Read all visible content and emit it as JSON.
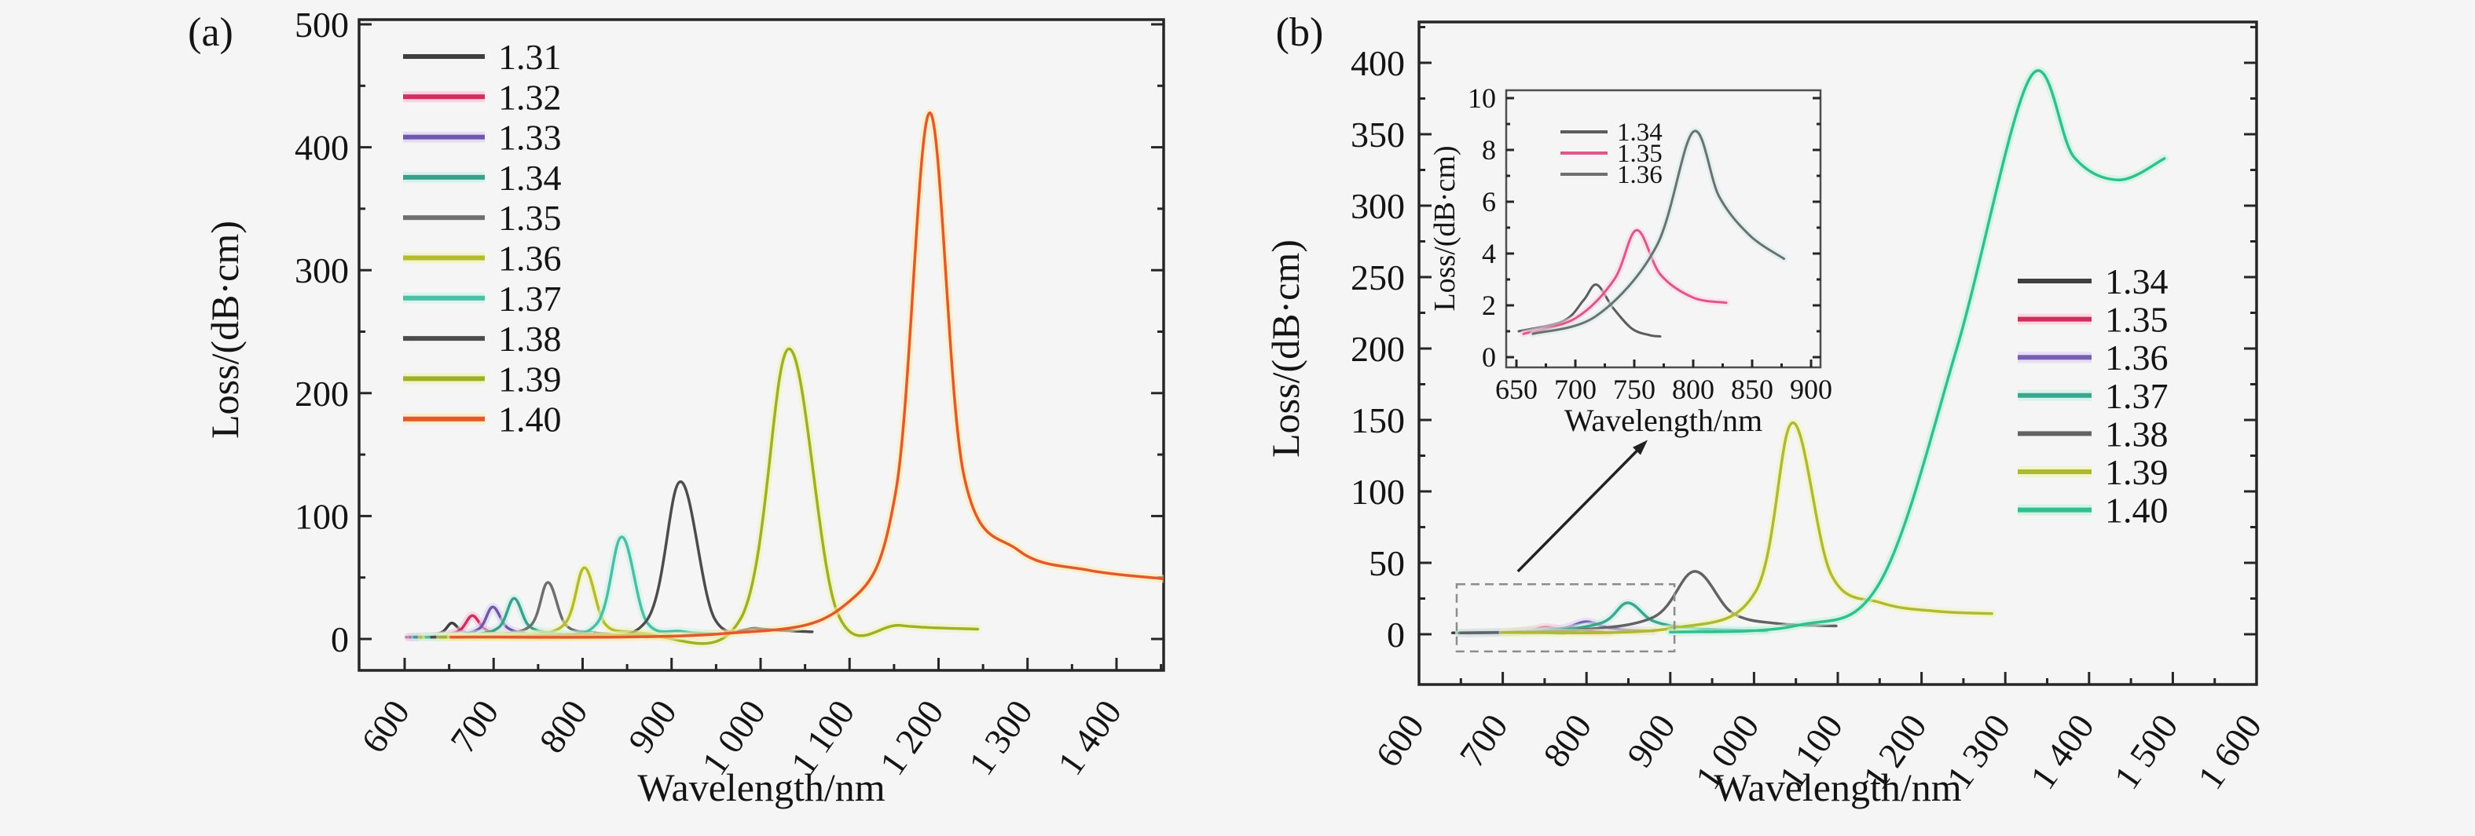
{
  "figure": {
    "background": "#f5f5f5",
    "text_color": "#141414",
    "frame_color": "#262626"
  },
  "chart_data": [
    {
      "id": "a",
      "type": "line",
      "panel_tag": "(a)",
      "xlabel": "Wavelength/nm",
      "ylabel": "Loss/(dB·cm)",
      "xlim": [
        549,
        1453
      ],
      "ylim": [
        -26,
        530
      ],
      "grid": false,
      "legend_position": "upper-left-inside",
      "x_ticks": {
        "values": [
          600,
          700,
          800,
          900,
          1000,
          1100,
          1200,
          1300,
          1400
        ],
        "labels": [
          "600",
          "700",
          "800",
          "900",
          "1 000",
          "1 100",
          "1 200",
          "1 300",
          "1 400"
        ]
      },
      "x_minor_ticks": [
        650,
        750,
        850,
        950,
        1050,
        1150,
        1250,
        1350,
        1450
      ],
      "y_ticks": {
        "values": [
          0,
          100,
          200,
          300,
          400,
          500
        ],
        "labels": [
          "0",
          "100",
          "200",
          "300",
          "400",
          "500"
        ]
      },
      "y_minor_ticks": [
        50,
        150,
        250,
        350,
        450
      ],
      "series": [
        {
          "label": "1.31",
          "color": "#3f3f3f",
          "halo": "",
          "peak": [
            653,
            13
          ],
          "points": [
            [
              602,
              1.5
            ],
            [
              628,
              2.5
            ],
            [
              643,
              6
            ],
            [
              653,
              13
            ],
            [
              664,
              6.5
            ],
            [
              678,
              3
            ],
            [
              700,
              2
            ],
            [
              728,
              1.6
            ]
          ]
        },
        {
          "label": "1.32",
          "color": "#cf2f5f",
          "halo": "#f7bfd2",
          "peak": [
            676,
            19
          ],
          "points": [
            [
              604,
              1.5
            ],
            [
              640,
              2.8
            ],
            [
              662,
              7
            ],
            [
              676,
              19
            ],
            [
              690,
              8
            ],
            [
              708,
              4
            ],
            [
              736,
              2.3
            ],
            [
              762,
              1.8
            ]
          ]
        },
        {
          "label": "1.33",
          "color": "#6f58ab",
          "halo": "#d9cdf0",
          "peak": [
            699,
            26
          ],
          "points": [
            [
              607,
              1.5
            ],
            [
              656,
              3
            ],
            [
              684,
              8.5
            ],
            [
              699,
              26
            ],
            [
              715,
              9.5
            ],
            [
              738,
              4.2
            ],
            [
              772,
              2.4
            ]
          ]
        },
        {
          "label": "1.34",
          "color": "#37a18b",
          "halo": "#c4efe3",
          "peak": [
            723,
            33
          ],
          "points": [
            [
              611,
              1.5
            ],
            [
              672,
              3.2
            ],
            [
              706,
              9.5
            ],
            [
              723,
              33
            ],
            [
              740,
              10.5
            ],
            [
              768,
              4.6
            ],
            [
              806,
              2.6
            ]
          ]
        },
        {
          "label": "1.35",
          "color": "#6e6e6e",
          "halo": "",
          "peak": [
            761,
            46
          ],
          "points": [
            [
              615,
              1.5
            ],
            [
              692,
              3.2
            ],
            [
              741,
              10.5
            ],
            [
              761,
              46
            ],
            [
              781,
              11.5
            ],
            [
              812,
              5.2
            ],
            [
              852,
              3.1
            ]
          ]
        },
        {
          "label": "1.36",
          "color": "#b2bc2c",
          "halo": "#eff3b4",
          "peak": [
            802,
            58
          ],
          "points": [
            [
              619,
              1.5
            ],
            [
              722,
              3.3
            ],
            [
              779,
              11.5
            ],
            [
              802,
              58
            ],
            [
              825,
              12.5
            ],
            [
              858,
              5.6
            ],
            [
              898,
              3.4
            ]
          ]
        },
        {
          "label": "1.37",
          "color": "#49c0a5",
          "halo": "#c9f2e7",
          "peak": [
            844,
            83
          ],
          "points": [
            [
              624,
              1.5
            ],
            [
              752,
              3.4
            ],
            [
              816,
              12.5
            ],
            [
              844,
              83
            ],
            [
              872,
              14
            ],
            [
              912,
              6.2
            ],
            [
              952,
              4
            ]
          ]
        },
        {
          "label": "1.38",
          "color": "#4c4c4c",
          "halo": "",
          "peak": [
            910,
            128
          ],
          "points": [
            [
              630,
              1.5
            ],
            [
              782,
              3.5
            ],
            [
              872,
              15
            ],
            [
              910,
              128
            ],
            [
              948,
              17
            ],
            [
              998,
              8.5
            ],
            [
              1058,
              5.8
            ]
          ]
        },
        {
          "label": "1.39",
          "color": "#9fb123",
          "halo": "#edf2ad",
          "peak": [
            1032,
            236
          ],
          "points": [
            [
              640,
              1.5
            ],
            [
              852,
              3.6
            ],
            [
              978,
              17
            ],
            [
              1032,
              236
            ],
            [
              1086,
              22
            ],
            [
              1158,
              11
            ],
            [
              1244,
              8
            ]
          ]
        },
        {
          "label": "1.40",
          "color": "#e2592b",
          "halo": "#fde8a8",
          "peak": [
            1190,
            428
          ],
          "points": [
            [
              652,
              1.5
            ],
            [
              952,
              4
            ],
            [
              1092,
              26
            ],
            [
              1152,
              120
            ],
            [
              1190,
              428
            ],
            [
              1228,
              135
            ],
            [
              1290,
              72
            ],
            [
              1368,
              56
            ],
            [
              1452,
              49
            ]
          ]
        }
      ]
    },
    {
      "id": "b",
      "type": "line",
      "panel_tag": "(b)",
      "xlabel": "Wavelength/nm",
      "ylabel": "Loss/(dB·cm)",
      "xlim": [
        600,
        1600
      ],
      "ylim": [
        -35,
        429
      ],
      "grid": false,
      "legend_position": "right-inside",
      "x_ticks": {
        "values": [
          600,
          700,
          800,
          900,
          1000,
          1100,
          1200,
          1300,
          1400,
          1500,
          1600
        ],
        "labels": [
          "600",
          "700",
          "800",
          "900",
          "1 000",
          "1 100",
          "1 200",
          "1 300",
          "1 400",
          "1 500",
          "1 600"
        ]
      },
      "x_minor_ticks": [
        650,
        750,
        850,
        950,
        1050,
        1150,
        1250,
        1350,
        1450,
        1550
      ],
      "y_ticks": {
        "values": [
          0,
          50,
          100,
          150,
          200,
          250,
          300,
          350,
          400
        ],
        "labels": [
          "0",
          "50",
          "100",
          "150",
          "200",
          "250",
          "300",
          "350",
          "400"
        ]
      },
      "y_minor_ticks": [
        25,
        75,
        125,
        175,
        225,
        275,
        325,
        375,
        425
      ],
      "series": [
        {
          "label": "1.34",
          "color": "#3f3f3f",
          "halo": "",
          "peak": [
            718,
            2.8
          ],
          "points": [
            [
              640,
              1
            ],
            [
              688,
              1.5
            ],
            [
              706,
              2.2
            ],
            [
              718,
              2.8
            ],
            [
              731,
              2
            ],
            [
              747,
              1.2
            ],
            [
              763,
              0.9
            ],
            [
              776,
              0.8
            ]
          ]
        },
        {
          "label": "1.35",
          "color": "#d02e5c",
          "halo": "#f7c6d6",
          "peak": [
            752,
            4.9
          ],
          "points": [
            [
              648,
              0.9
            ],
            [
              700,
              1.5
            ],
            [
              732,
              2.9
            ],
            [
              752,
              4.9
            ],
            [
              771,
              3.1
            ],
            [
              796,
              1.9
            ],
            [
              828,
              1.5
            ]
          ]
        },
        {
          "label": "1.36",
          "color": "#7560b2",
          "halo": "#dcd0f2",
          "peak": [
            800,
            8.8
          ],
          "points": [
            [
              658,
              0.9
            ],
            [
              720,
              1.8
            ],
            [
              772,
              4.2
            ],
            [
              800,
              8.8
            ],
            [
              828,
              4.2
            ],
            [
              858,
              2.6
            ],
            [
              880,
              2.3
            ]
          ]
        },
        {
          "label": "1.37",
          "color": "#3aa890",
          "halo": "#c6f1e5",
          "peak": [
            849,
            22
          ],
          "points": [
            [
              648,
              1
            ],
            [
              748,
              2.1
            ],
            [
              818,
              8
            ],
            [
              849,
              22
            ],
            [
              879,
              9.5
            ],
            [
              920,
              4.5
            ],
            [
              978,
              2.8
            ],
            [
              1015,
              2.4
            ]
          ]
        },
        {
          "label": "1.38",
          "color": "#636363",
          "halo": "",
          "peak": [
            929,
            44
          ],
          "points": [
            [
              650,
              1
            ],
            [
              780,
              2.6
            ],
            [
              880,
              12
            ],
            [
              929,
              44
            ],
            [
              974,
              15
            ],
            [
              1028,
              7.5
            ],
            [
              1098,
              5.8
            ]
          ]
        },
        {
          "label": "1.39",
          "color": "#b0ba30",
          "halo": "#f0f4b2",
          "peak": [
            1046,
            148
          ],
          "points": [
            [
              700,
              1.2
            ],
            [
              900,
              4
            ],
            [
              1002,
              30
            ],
            [
              1046,
              148
            ],
            [
              1092,
              42
            ],
            [
              1152,
              22
            ],
            [
              1220,
              16
            ],
            [
              1284,
              14.5
            ]
          ]
        },
        {
          "label": "1.40",
          "color": "#2fc08f",
          "halo": "#bdf2dd",
          "peak": [
            1330,
            390
          ],
          "points": [
            [
              900,
              1.5
            ],
            [
              1050,
              6
            ],
            [
              1150,
              36
            ],
            [
              1242,
              200
            ],
            [
              1330,
              390
            ],
            [
              1382,
              334
            ],
            [
              1436,
              318
            ],
            [
              1490,
              333
            ]
          ]
        }
      ],
      "annotations": {
        "dashed_box": {
          "x": [
            645,
            905
          ],
          "y": [
            -12,
            35
          ]
        },
        "arrow": {
          "from": [
            718,
            44
          ],
          "to": [
            873,
            136
          ]
        }
      },
      "inset": {
        "type": "line",
        "xlabel": "Wavelength/nm",
        "ylabel": "Loss/(dB·cm)",
        "xlim": [
          641,
          908
        ],
        "ylim": [
          -0.4,
          10.3
        ],
        "x_ticks": {
          "values": [
            650,
            700,
            750,
            800,
            850,
            900
          ],
          "labels": [
            "650",
            "700",
            "750",
            "800",
            "850",
            "900"
          ]
        },
        "x_minor_ticks": [
          675,
          725,
          775,
          825,
          875
        ],
        "y_ticks": {
          "values": [
            0,
            2,
            4,
            6,
            8,
            10
          ],
          "labels": [
            "0",
            "2",
            "4",
            "6",
            "8",
            "10"
          ]
        },
        "y_minor_ticks": [
          1,
          3,
          5,
          7,
          9
        ],
        "series": [
          {
            "label": "1.34",
            "color": "#5c5c5c",
            "halo": "",
            "peak": [
              718,
              2.8
            ],
            "points": [
              [
                652,
                1
              ],
              [
                690,
                1.4
              ],
              [
                707,
                2.2
              ],
              [
                718,
                2.8
              ],
              [
                732,
                1.9
              ],
              [
                748,
                1.1
              ],
              [
                763,
                0.85
              ],
              [
                772,
                0.8
              ]
            ]
          },
          {
            "label": "1.35",
            "color": "#e0558c",
            "halo": "#fad4e4",
            "peak": [
              752,
              4.9
            ],
            "points": [
              [
                656,
                0.9
              ],
              [
                700,
                1.5
              ],
              [
                733,
                3
              ],
              [
                752,
                4.9
              ],
              [
                772,
                3.2
              ],
              [
                800,
                2.3
              ],
              [
                828,
                2.1
              ]
            ]
          },
          {
            "label": "1.36",
            "color": "#6f6f6f",
            "halo": "#cdeee6",
            "peak": [
              800,
              8.7
            ],
            "points": [
              [
                664,
                0.9
              ],
              [
                718,
                1.6
              ],
              [
                769,
                4.3
              ],
              [
                800,
                8.7
              ],
              [
                822,
                6.2
              ],
              [
                848,
                4.7
              ],
              [
                877,
                3.8
              ]
            ]
          }
        ]
      }
    }
  ]
}
